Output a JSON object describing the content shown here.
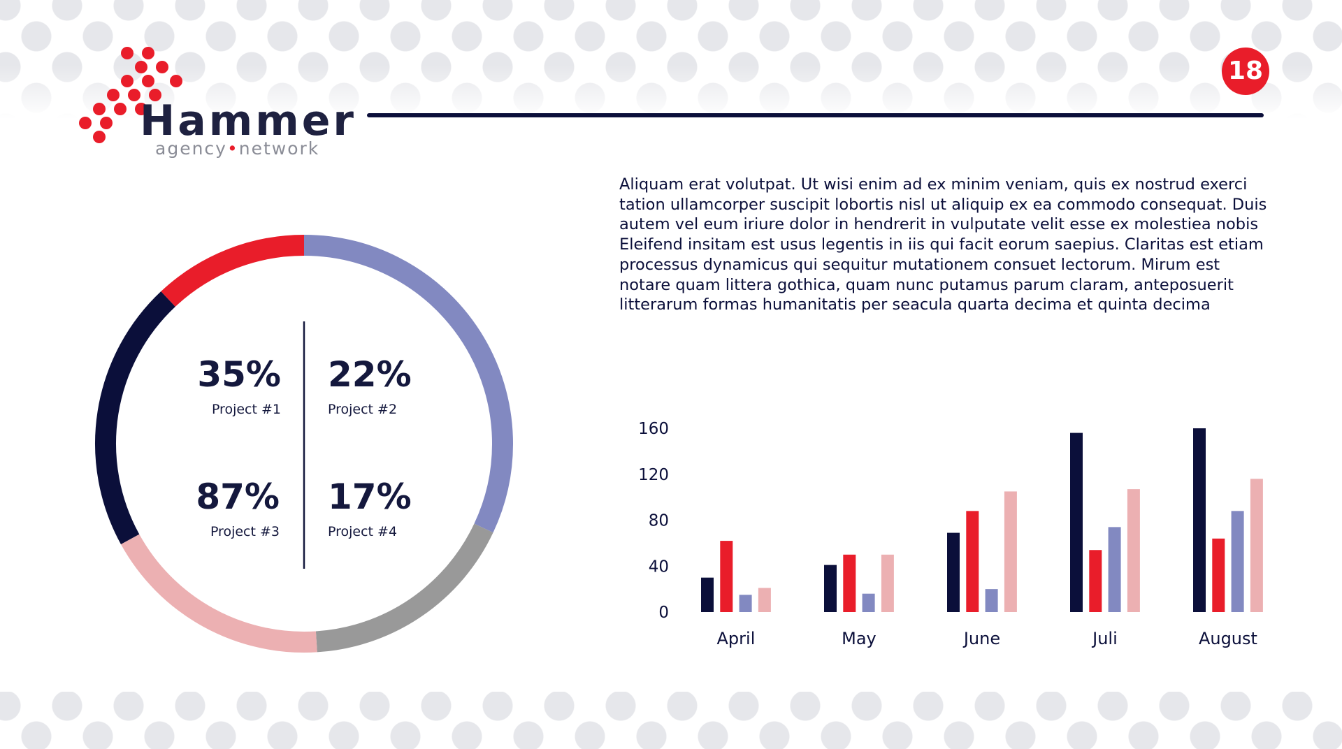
{
  "page_number": "18",
  "logo": {
    "name": "Hammer",
    "tag_left": "agency",
    "tag_right": "network"
  },
  "body_text": "Aliquam erat volutpat. Ut wisi enim ad ex minim veniam, quis ex nostrud exerci tation ullamcorper suscipit lobortis nisl ut aliquip ex ea commodo consequat. Duis autem vel eum iriure dolor in hendrerit in vulputate velit esse ex molestiea nobis Eleifend insitam est usus legentis in iis qui facit eorum saepius. Claritas est etiam processus dynamicus qui sequitur mutationem consuet lectorum. Mirum est notare quam littera gothica, quam nunc putamus parum claram, anteposuerit litterarum formas humanitatis per seacula quarta decima et quinta decima",
  "colors": {
    "navy": "#0b0f3a",
    "red": "#e91d2a",
    "periwinkle": "#8289c1",
    "gray": "#999999",
    "pink": "#ecb0b2"
  },
  "chart_data": [
    {
      "type": "pie",
      "variant": "donut",
      "slices": [
        {
          "value": 32,
          "color": "#8289c1"
        },
        {
          "value": 17,
          "color": "#999999"
        },
        {
          "value": 18,
          "color": "#ecb0b2"
        },
        {
          "value": 21,
          "color": "#0b0f3a"
        },
        {
          "value": 12,
          "color": "#e91d2a"
        }
      ],
      "stats": [
        {
          "value": "35%",
          "label": "Project #1"
        },
        {
          "value": "22%",
          "label": "Project #2"
        },
        {
          "value": "87%",
          "label": "Project #3"
        },
        {
          "value": "17%",
          "label": "Project #4"
        }
      ]
    },
    {
      "type": "bar",
      "categories": [
        "April",
        "May",
        "June",
        "Juli",
        "August"
      ],
      "series": [
        {
          "color": "#0b0f3a",
          "values": [
            30,
            41,
            69,
            156,
            160
          ]
        },
        {
          "color": "#e91d2a",
          "values": [
            62,
            50,
            88,
            54,
            64
          ]
        },
        {
          "color": "#8289c1",
          "values": [
            15,
            16,
            20,
            74,
            88
          ]
        },
        {
          "color": "#ecb0b2",
          "values": [
            21,
            50,
            105,
            107,
            116
          ]
        }
      ],
      "yticks": [
        "0",
        "40",
        "80",
        "120",
        "160"
      ],
      "ylim": [
        0,
        160
      ],
      "grid": false,
      "legend": "none"
    }
  ]
}
